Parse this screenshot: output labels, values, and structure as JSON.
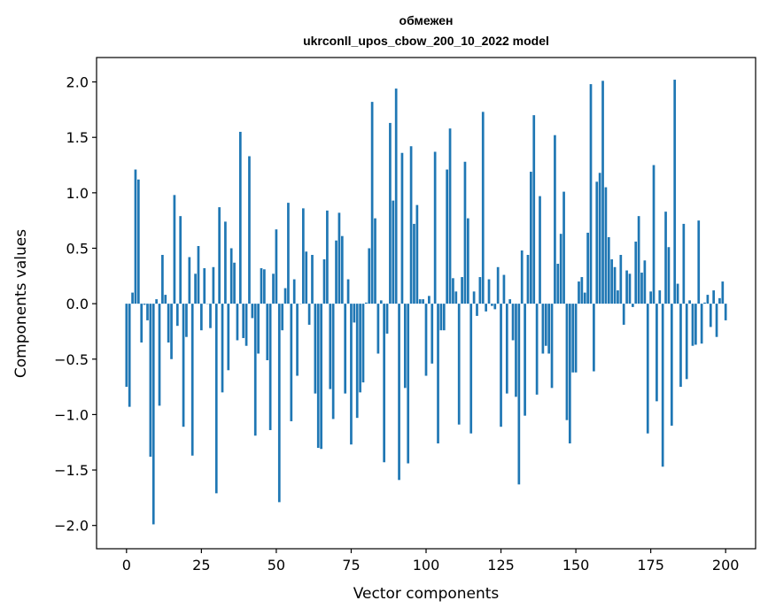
{
  "chart_data": {
    "type": "bar",
    "title_line1": "обмежен",
    "title_line2": "ukrconll_upos_cbow_200_10_2022 model",
    "xlabel": "Vector components",
    "ylabel": "Components values",
    "xlim": [
      -10,
      210
    ],
    "ylim": [
      -2.21,
      2.22
    ],
    "xticks": [
      "0",
      "25",
      "50",
      "75",
      "100",
      "125",
      "150",
      "175",
      "200"
    ],
    "xtick_values": [
      0,
      25,
      50,
      75,
      100,
      125,
      150,
      175,
      200
    ],
    "yticks": [
      "−2.0",
      "−1.5",
      "−1.0",
      "−0.5",
      "0.0",
      "0.5",
      "1.0",
      "1.5",
      "2.0"
    ],
    "ytick_values": [
      -2,
      -1.5,
      -1,
      -0.5,
      0,
      0.5,
      1,
      1.5,
      2
    ],
    "color": "#1f77b4",
    "values": [
      -0.75,
      -0.93,
      0.1,
      1.21,
      1.12,
      -0.35,
      -0.01,
      -0.15,
      -1.38,
      -1.99,
      0.04,
      -0.92,
      0.44,
      0.08,
      -0.35,
      -0.5,
      0.98,
      -0.2,
      0.79,
      -1.11,
      -0.3,
      0.42,
      -1.37,
      0.27,
      0.52,
      -0.24,
      0.32,
      0.0,
      -0.22,
      0.33,
      -1.71,
      0.87,
      -0.8,
      0.74,
      -0.6,
      0.5,
      0.37,
      -0.33,
      1.55,
      -0.31,
      -0.38,
      1.33,
      -0.13,
      -1.19,
      -0.45,
      0.32,
      0.31,
      -0.51,
      -1.14,
      0.27,
      0.67,
      -1.79,
      -0.24,
      0.14,
      0.91,
      -1.06,
      0.22,
      -0.65,
      0.0,
      0.86,
      0.47,
      -0.19,
      0.44,
      -0.81,
      -1.3,
      -1.31,
      0.4,
      0.84,
      -0.77,
      -1.04,
      0.57,
      0.82,
      0.61,
      -0.81,
      0.22,
      -1.27,
      -0.17,
      -1.03,
      -0.8,
      -0.71,
      0.01,
      0.5,
      1.82,
      0.77,
      -0.45,
      0.03,
      -1.43,
      -0.27,
      1.63,
      0.93,
      1.94,
      -1.59,
      1.36,
      -0.76,
      -1.44,
      1.42,
      0.72,
      0.89,
      0.04,
      0.04,
      -0.65,
      0.07,
      -0.54,
      1.37,
      -1.26,
      -0.24,
      -0.24,
      1.21,
      1.58,
      0.23,
      0.11,
      -1.09,
      0.24,
      1.28,
      0.77,
      -1.17,
      0.11,
      -0.11,
      0.24,
      1.73,
      -0.07,
      0.22,
      -0.02,
      -0.05,
      0.33,
      -1.11,
      0.26,
      -0.81,
      0.04,
      -0.33,
      -0.84,
      -1.63,
      0.48,
      -1.01,
      0.44,
      1.19,
      1.7,
      -0.82,
      0.97,
      -0.45,
      -0.38,
      -0.45,
      -0.76,
      1.52,
      0.36,
      0.63,
      1.01,
      -1.05,
      -1.26,
      -0.62,
      -0.62,
      0.2,
      0.24,
      0.1,
      0.64,
      1.98,
      -0.61,
      1.1,
      1.18,
      2.01,
      1.05,
      0.6,
      0.4,
      0.33,
      0.12,
      0.44,
      -0.19,
      0.3,
      0.27,
      -0.03,
      0.56,
      0.79,
      0.28,
      0.39,
      -1.17,
      0.11,
      1.25,
      -0.88,
      0.12,
      -1.47,
      0.83,
      0.51,
      -1.1,
      2.02,
      0.18,
      -0.75,
      0.72,
      -0.68,
      0.03,
      -0.38,
      -0.37,
      0.75,
      -0.36,
      0.01,
      0.08,
      -0.21,
      0.12,
      -0.3,
      0.05,
      0.2,
      -0.15
    ]
  }
}
